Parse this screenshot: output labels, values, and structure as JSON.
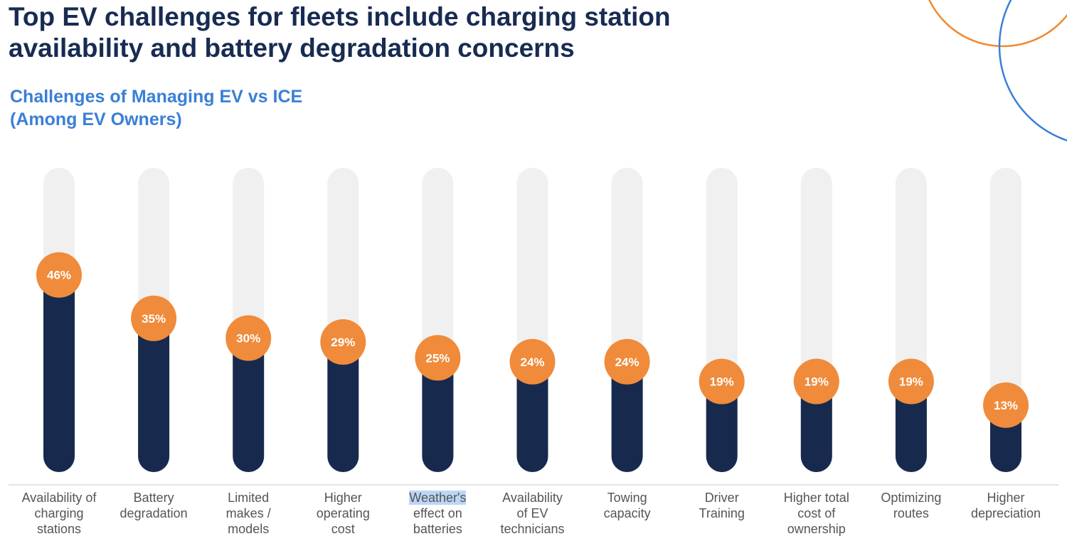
{
  "header": {
    "title": "Top EV challenges for fleets include charging station\navailability and battery degradation concerns",
    "subtitle": "Challenges of Managing EV vs ICE\n(Among EV Owners)"
  },
  "colors": {
    "title": "#182b52",
    "subtitle": "#3a7fd6",
    "track": "#f0f0f0",
    "bar": "#172a4e",
    "marker": "#ef8b3b",
    "accent_orange": "#f08a33",
    "accent_blue": "#3a7fd6"
  },
  "chart_data": {
    "type": "bar",
    "categories": [
      "Availability of\ncharging\nstations",
      "Battery\ndegradation",
      "Limited\nmakes /\nmodels",
      "Higher\noperating\ncost",
      "Weather's\neffect on\nbatteries",
      "Availability\nof EV\ntechnicians",
      "Towing\ncapacity",
      "Driver\nTraining",
      "Higher total\ncost of\nownership",
      "Optimizing\nroutes",
      "Higher\ndepreciation"
    ],
    "values": [
      46,
      35,
      30,
      29,
      25,
      24,
      24,
      19,
      19,
      19,
      13
    ],
    "data_labels": [
      "46%",
      "35%",
      "30%",
      "29%",
      "25%",
      "24%",
      "24%",
      "19%",
      "19%",
      "19%",
      "13%"
    ],
    "unit": "%",
    "ylim": [
      0,
      100
    ],
    "grid": false,
    "legend": "none"
  }
}
